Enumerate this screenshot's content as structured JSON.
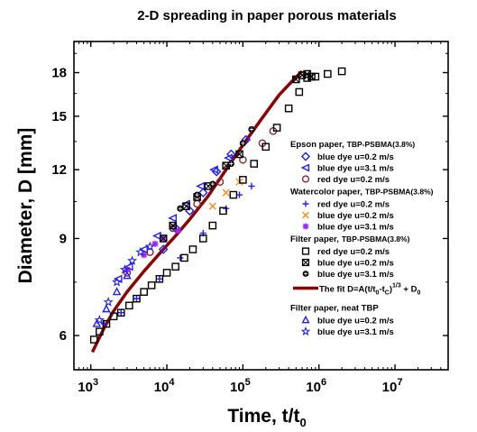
{
  "chart_data": {
    "type": "scatter",
    "title": "2-D spreading in paper porous materials",
    "xlabel_main": "Time, t/t",
    "xlabel_sub": "0",
    "ylabel": "Diameter, D [mm]",
    "x_scale": "log",
    "y_scale": "log",
    "xlim": [
      600,
      50000000
    ],
    "ylim": [
      5.2,
      20.5
    ],
    "x_ticks": [
      {
        "value": 1000,
        "base": "10",
        "exp": "3"
      },
      {
        "value": 10000,
        "base": "10",
        "exp": "4"
      },
      {
        "value": 100000,
        "base": "10",
        "exp": "5"
      },
      {
        "value": 1000000,
        "base": "10",
        "exp": "6"
      },
      {
        "value": 10000000,
        "base": "10",
        "exp": "7"
      }
    ],
    "y_ticks": [
      {
        "value": 6,
        "label": "6"
      },
      {
        "value": 9,
        "label": "9"
      },
      {
        "value": 12,
        "label": "12"
      },
      {
        "value": 15,
        "label": "15"
      },
      {
        "value": 18,
        "label": "18"
      }
    ],
    "grid": false,
    "legend_position": "right",
    "groups": [
      {
        "header": "Epson paper,",
        "header_sub": "TBP-PSBMA(3.8%)",
        "series": [
          {
            "name": "blue dye  u=0.2 m/s",
            "marker": "diamond",
            "color": "#1f1fff",
            "x": [
              9000,
              13000,
              20000,
              30000,
              45000,
              70000,
              110000
            ],
            "y": [
              8.6,
              9.4,
              10.1,
              10.9,
              11.9,
              12.8,
              13.6
            ]
          },
          {
            "name": "blue dye  u=3.1 m/s",
            "marker": "triangle-left",
            "color": "#1f1fff",
            "x": [
              2300,
              3200,
              5000,
              7500,
              12000,
              18000,
              28000,
              42000,
              65000
            ],
            "y": [
              7.6,
              8.0,
              8.6,
              9.1,
              9.8,
              10.4,
              11.2,
              12.0,
              12.6
            ]
          },
          {
            "name": "red dye  u=0.2 m/s",
            "marker": "circle",
            "color": "#8b2a2a",
            "x": [
              3000,
              6000,
              12000,
              25000,
              50000,
              100000,
              180000,
              250000
            ],
            "y": [
              7.8,
              8.5,
              9.4,
              10.4,
              11.4,
              12.5,
              13.4,
              14.1
            ]
          }
        ]
      },
      {
        "header": "Watercolor paper,",
        "header_sub": "TBP-PSBMA(3.8%)",
        "series": [
          {
            "name": "red dye  u=0.2 m/s",
            "marker": "plus",
            "color": "#1f1fff",
            "x": [
              1500,
              2500,
              4000,
              8000,
              15000,
              30000,
              60000,
              90000,
              130000
            ],
            "y": [
              6.3,
              6.6,
              7.0,
              7.6,
              8.3,
              9.2,
              10.2,
              10.8,
              11.2
            ]
          },
          {
            "name": "blue dye  u=0.2 m/s",
            "marker": "cross",
            "color": "#ff8c1a",
            "x": [
              40000,
              60000,
              90000
            ],
            "y": [
              10.3,
              10.9,
              11.4
            ]
          },
          {
            "name": "blue dye  u=3.1 m/s",
            "marker": "asterisk",
            "color": "#9a2cff",
            "x": [
              3000,
              5000,
              7000,
              9000,
              14000
            ],
            "y": [
              7.9,
              8.4,
              8.8,
              9.0,
              9.3
            ]
          }
        ]
      },
      {
        "header": "Filter paper,",
        "header_sub": "TBP-PSBMA(3.8%)",
        "series": [
          {
            "name": "red dye  u=0.2 m/s",
            "marker": "square",
            "color": "#000000",
            "x": [
              1100,
              1300,
              1600,
              2000,
              2500,
              3200,
              4000,
              5000,
              6300,
              8000,
              10000,
              13000,
              17000,
              22000,
              30000,
              40000,
              55000,
              75000,
              100000,
              140000,
              200000,
              280000,
              400000,
              550000,
              700000,
              900000,
              1300000,
              2000000
            ],
            "y": [
              5.9,
              6.1,
              6.3,
              6.5,
              6.6,
              6.8,
              7.0,
              7.2,
              7.4,
              7.6,
              7.8,
              8.0,
              8.3,
              8.6,
              9.0,
              9.5,
              10.1,
              10.8,
              11.5,
              12.3,
              13.2,
              14.3,
              15.5,
              16.6,
              17.6,
              17.7,
              17.9,
              18.1
            ]
          },
          {
            "name": "blue dye  u=0.2 m/s",
            "marker": "square-x",
            "color": "#000000",
            "x": [
              9000,
              12000,
              18000,
              25000,
              35000,
              60000,
              90000,
              500000,
              600000,
              700000,
              800000
            ],
            "y": [
              9.0,
              9.5,
              10.3,
              10.7,
              11.2,
              12.2,
              12.8,
              17.5,
              17.8,
              17.9,
              17.7
            ]
          },
          {
            "name": "blue dye  u=3.1 m/s",
            "marker": "dot",
            "color": "#000000",
            "x": [
              15000,
              25000,
              40000,
              70000,
              100000,
              130000
            ],
            "y": [
              10.2,
              10.8,
              11.3,
              12.3,
              13.4,
              14.2
            ]
          }
        ]
      },
      {
        "header": "",
        "header_sub": "",
        "series": [
          {
            "name": "fit",
            "marker": "line",
            "color": "#8b0000",
            "label_main": "The fit D=A(t/t",
            "label_sub1": "0",
            "label_mid": "-t",
            "label_sub2": "C",
            "label_close": ")",
            "label_sup": "1/3",
            "label_plus": " +  D",
            "label_sub3": "0",
            "x": [
              1050,
              1500,
              2000,
              3000,
              5000,
              8000,
              13000,
              20000,
              35000,
              60000,
              100000,
              180000,
              300000,
              450000,
              600000
            ],
            "y": [
              5.6,
              6.2,
              6.65,
              7.2,
              7.85,
              8.45,
              9.1,
              9.75,
              10.75,
              12.0,
              13.3,
              14.9,
              16.4,
              17.4,
              18.1
            ]
          }
        ]
      },
      {
        "header": "Filter paper, neat TBP",
        "header_sub": "",
        "series": [
          {
            "name": "blue dye u=0.2 m/s",
            "marker": "triangle-up",
            "color": "#1f1fff",
            "x": [
              1200,
              1600,
              2200,
              3000
            ],
            "y": [
              6.3,
              6.7,
              7.2,
              7.7
            ]
          },
          {
            "name": "blue dye u=3.1 m/s",
            "marker": "star",
            "color": "#1f1fff",
            "x": [
              1300,
              1700,
              2200,
              2800,
              3500,
              4500,
              6000
            ],
            "y": [
              6.4,
              6.9,
              7.5,
              7.9,
              8.2,
              8.5,
              8.7
            ]
          }
        ]
      }
    ]
  }
}
